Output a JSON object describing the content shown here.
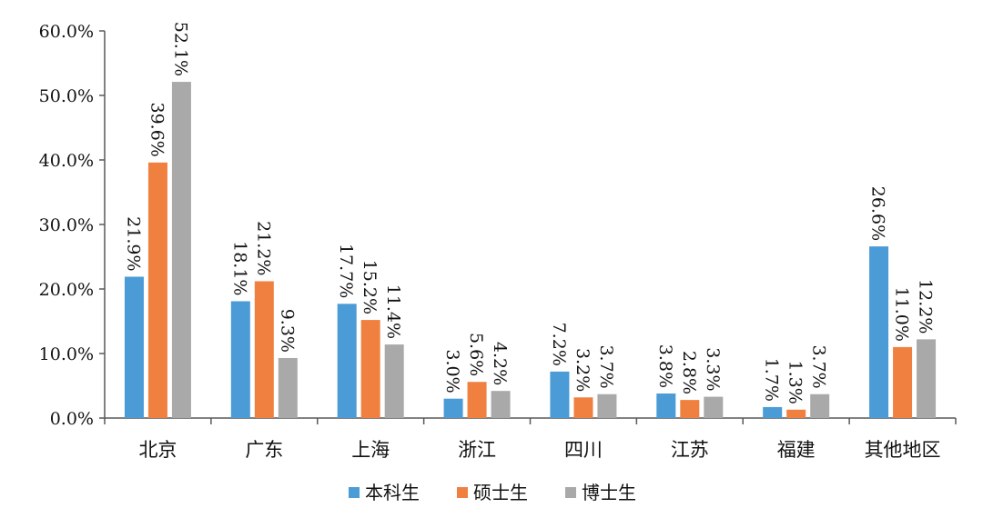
{
  "chart_data": {
    "type": "bar",
    "title": "",
    "xlabel": "",
    "ylabel": "",
    "ylim": [
      0,
      60
    ],
    "yticks": [
      "0.0%",
      "10.0%",
      "20.0%",
      "30.0%",
      "40.0%",
      "50.0%",
      "60.0%"
    ],
    "grid": false,
    "legend_position": "bottom",
    "categories": [
      "北京",
      "广东",
      "上海",
      "浙江",
      "四川",
      "江苏",
      "福建",
      "其他地区"
    ],
    "series": [
      {
        "name": "本科生",
        "color": "#4A9BD6",
        "values": [
          21.9,
          18.1,
          17.7,
          3.0,
          7.2,
          3.8,
          1.7,
          26.6
        ],
        "labels": [
          "21.9%",
          "18.1%",
          "17.7%",
          "3.0%",
          "7.2%",
          "3.8%",
          "1.7%",
          "26.6%"
        ]
      },
      {
        "name": "硕士生",
        "color": "#F08040",
        "values": [
          39.6,
          21.2,
          15.2,
          5.6,
          3.2,
          2.8,
          1.3,
          11.0
        ],
        "labels": [
          "39.6%",
          "21.2%",
          "15.2%",
          "5.6%",
          "3.2%",
          "2.8%",
          "1.3%",
          "11.0%"
        ]
      },
      {
        "name": "博士生",
        "color": "#A9A9A9",
        "values": [
          52.1,
          9.3,
          11.4,
          4.2,
          3.7,
          3.3,
          3.7,
          12.2
        ],
        "labels": [
          "52.1%",
          "9.3%",
          "11.4%",
          "4.2%",
          "3.7%",
          "3.3%",
          "3.7%",
          "12.2%"
        ]
      }
    ]
  }
}
